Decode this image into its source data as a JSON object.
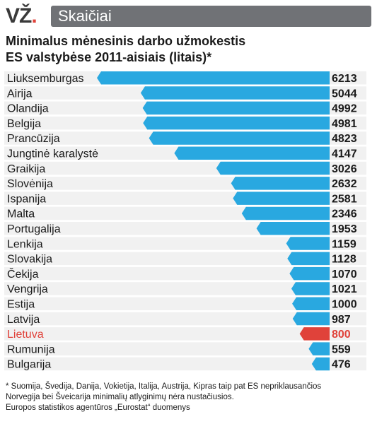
{
  "header": {
    "logo_text": "VŽ",
    "logo_dot": ".",
    "section": "Skaičiai"
  },
  "title": {
    "line1": "Minimalus mėnesinis darbo užmokestis",
    "line2": "ES valstybėse 2011-aisiais (litais)*"
  },
  "colors": {
    "bar": "#29a8e0",
    "highlight_bar": "#e0423a",
    "highlight_text": "#e0423a",
    "header_bg": "#707276",
    "row_bg": "#f1f1f1"
  },
  "chart_data": {
    "type": "bar",
    "orientation": "horizontal",
    "categories": [
      "Liuksemburgas",
      "Airija",
      "Olandija",
      "Belgija",
      "Prancūzija",
      "Jungtinė karalystė",
      "Graikija",
      "Slovėnija",
      "Ispanija",
      "Malta",
      "Portugalija",
      "Lenkija",
      "Slovakija",
      "Čekija",
      "Vengrija",
      "Estija",
      "Latvija",
      "Lietuva",
      "Rumunija",
      "Bulgarija"
    ],
    "values": [
      6213,
      5044,
      4992,
      4981,
      4823,
      4147,
      3026,
      2632,
      2581,
      2346,
      1953,
      1159,
      1128,
      1070,
      1021,
      1000,
      987,
      800,
      559,
      476
    ],
    "value_labels": [
      "6213",
      "5044",
      "4992",
      "4981",
      "4823",
      "4147",
      "3026",
      "2632",
      "2581",
      "2346",
      "1953",
      "1159",
      "1128",
      "1070",
      "1021",
      "1000",
      "987",
      "800",
      "559",
      "476"
    ],
    "highlight": "Lietuva",
    "xlim": [
      0,
      6213
    ]
  },
  "footnote": {
    "line1": "* Suomija, Švedija, Danija, Vokietija, Italija, Austrija, Kipras taip pat ES nepriklausančios",
    "line2": "Norvegija bei Šveicarija minimalių atlyginimų nėra nustačiusios.",
    "line3": "Europos statistikos agentūros „Eurostat“ duomenys"
  }
}
